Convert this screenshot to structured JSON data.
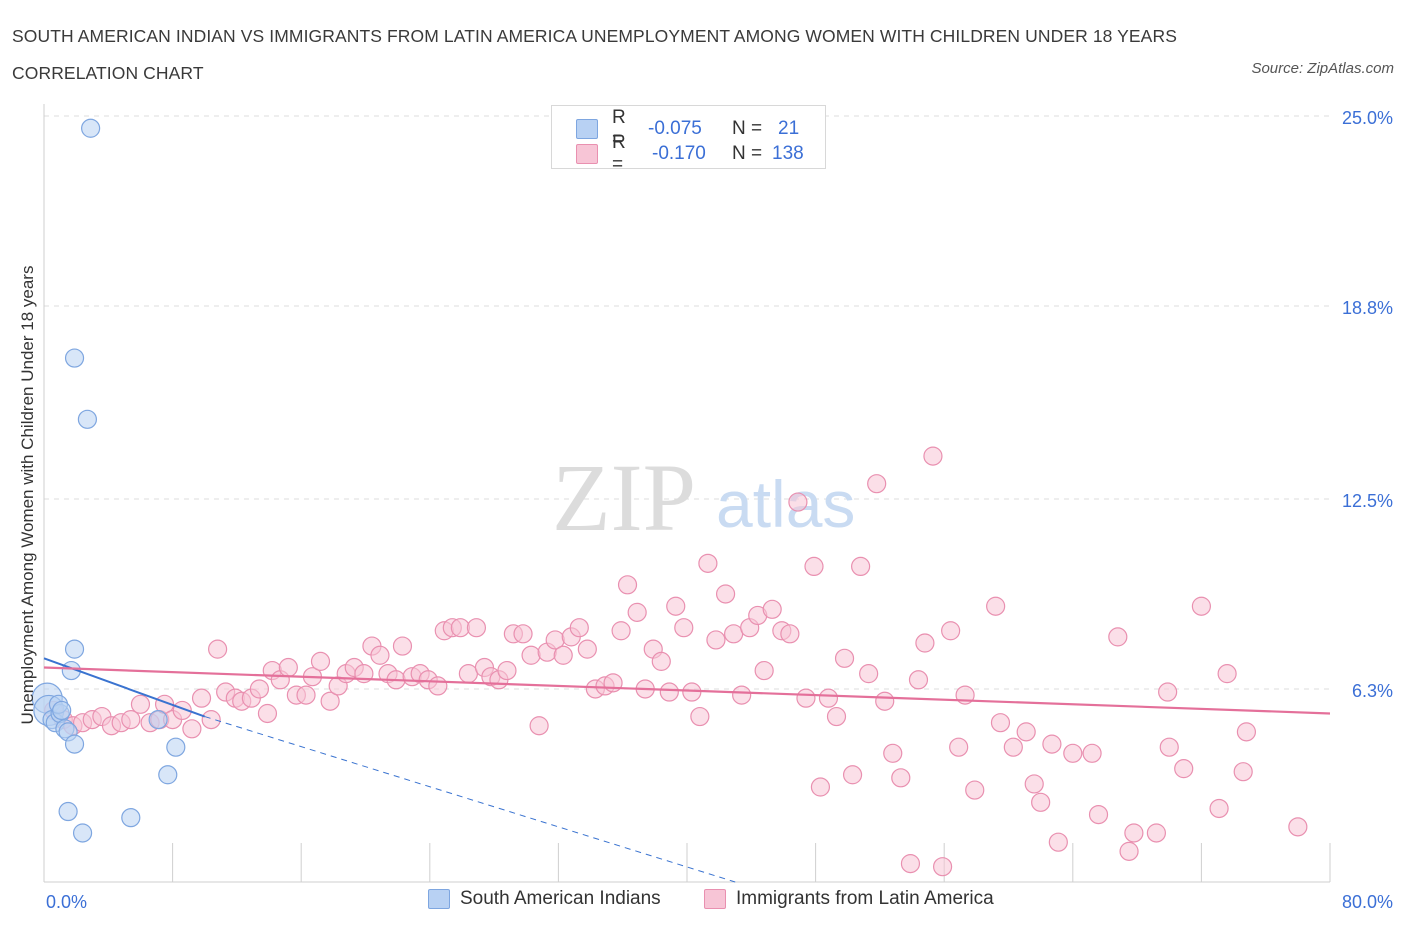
{
  "title": "SOUTH AMERICAN INDIAN VS IMMIGRANTS FROM LATIN AMERICA UNEMPLOYMENT AMONG WOMEN WITH CHILDREN UNDER 18 YEARS CORRELATION CHART",
  "source": "Source: ZipAtlas.com",
  "watermark": {
    "zip": "ZIP",
    "atlas": "atlas"
  },
  "legend": {
    "rows": [
      {
        "r_label": "R =",
        "r_value": "-0.075",
        "n_label": "N =",
        "n_value": "21",
        "fill": "#b8d1f3",
        "stroke": "#7ea6e0"
      },
      {
        "r_label": "R =",
        "r_value": "-0.170",
        "n_label": "N =",
        "n_value": "138",
        "fill": "#f7c5d6",
        "stroke": "#e990b0"
      }
    ]
  },
  "chart_data": {
    "type": "scatter",
    "ylabel": "Unemployment Among Women with Children Under 18 years",
    "xlim": [
      0,
      80
    ],
    "ylim": [
      0,
      25
    ],
    "x_tick_labels": [
      {
        "value": 0,
        "label": "0.0%"
      },
      {
        "value": 80,
        "label": "80.0%"
      }
    ],
    "y_tick_labels": [
      {
        "value": 6.3,
        "label": "6.3%"
      },
      {
        "value": 12.5,
        "label": "12.5%"
      },
      {
        "value": 18.8,
        "label": "18.8%"
      },
      {
        "value": 25.0,
        "label": "25.0%"
      }
    ],
    "grid": true,
    "legend_position": "bottom-center",
    "series": [
      {
        "name": "South American Indians",
        "color": "#7ea6e0",
        "fill": "#b8d1f3",
        "trend": {
          "x0": 0,
          "y0": 7.3,
          "x1": 10,
          "y1": 5.4,
          "dashed_to_x": 43
        },
        "points": [
          [
            2.9,
            24.6
          ],
          [
            1.9,
            17.1
          ],
          [
            2.7,
            15.1
          ],
          [
            0.2,
            6.0
          ],
          [
            0.3,
            5.6
          ],
          [
            0.5,
            5.3
          ],
          [
            0.7,
            5.2
          ],
          [
            1.0,
            5.5
          ],
          [
            1.3,
            5.0
          ],
          [
            1.5,
            4.9
          ],
          [
            1.9,
            4.5
          ],
          [
            0.9,
            5.8
          ],
          [
            1.1,
            5.6
          ],
          [
            1.7,
            6.9
          ],
          [
            1.9,
            7.6
          ],
          [
            7.1,
            5.3
          ],
          [
            8.2,
            4.4
          ],
          [
            7.7,
            3.5
          ],
          [
            1.5,
            2.3
          ],
          [
            2.4,
            1.6
          ],
          [
            5.4,
            2.1
          ]
        ]
      },
      {
        "name": "Immigrants from Latin America",
        "color": "#e990b0",
        "fill": "#f7c5d6",
        "trend": {
          "x0": 0,
          "y0": 7.0,
          "x1": 80,
          "y1": 5.5
        },
        "points": [
          [
            0.6,
            5.6
          ],
          [
            1.2,
            5.3
          ],
          [
            1.8,
            5.1
          ],
          [
            2.4,
            5.2
          ],
          [
            3.0,
            5.3
          ],
          [
            3.6,
            5.4
          ],
          [
            4.2,
            5.1
          ],
          [
            4.8,
            5.2
          ],
          [
            5.4,
            5.3
          ],
          [
            6.0,
            5.8
          ],
          [
            6.6,
            5.2
          ],
          [
            7.2,
            5.3
          ],
          [
            7.5,
            5.8
          ],
          [
            8.0,
            5.3
          ],
          [
            8.6,
            5.6
          ],
          [
            9.2,
            5.0
          ],
          [
            9.8,
            6.0
          ],
          [
            10.4,
            5.3
          ],
          [
            10.8,
            7.6
          ],
          [
            11.3,
            6.2
          ],
          [
            11.9,
            6.0
          ],
          [
            12.3,
            5.9
          ],
          [
            12.9,
            6.0
          ],
          [
            13.4,
            6.3
          ],
          [
            13.9,
            5.5
          ],
          [
            14.2,
            6.9
          ],
          [
            14.7,
            6.6
          ],
          [
            15.2,
            7.0
          ],
          [
            15.7,
            6.1
          ],
          [
            16.3,
            6.1
          ],
          [
            16.7,
            6.7
          ],
          [
            17.2,
            7.2
          ],
          [
            17.8,
            5.9
          ],
          [
            18.3,
            6.4
          ],
          [
            18.8,
            6.8
          ],
          [
            19.3,
            7.0
          ],
          [
            19.9,
            6.8
          ],
          [
            20.4,
            7.7
          ],
          [
            20.9,
            7.4
          ],
          [
            21.4,
            6.8
          ],
          [
            21.9,
            6.6
          ],
          [
            22.3,
            7.7
          ],
          [
            22.9,
            6.7
          ],
          [
            23.4,
            6.8
          ],
          [
            23.9,
            6.6
          ],
          [
            24.5,
            6.4
          ],
          [
            24.9,
            8.2
          ],
          [
            25.4,
            8.3
          ],
          [
            25.9,
            8.3
          ],
          [
            26.4,
            6.8
          ],
          [
            26.9,
            8.3
          ],
          [
            27.4,
            7.0
          ],
          [
            27.8,
            6.7
          ],
          [
            28.3,
            6.6
          ],
          [
            28.8,
            6.9
          ],
          [
            29.2,
            8.1
          ],
          [
            29.8,
            8.1
          ],
          [
            30.3,
            7.4
          ],
          [
            30.8,
            5.1
          ],
          [
            31.3,
            7.5
          ],
          [
            31.8,
            7.9
          ],
          [
            32.3,
            7.4
          ],
          [
            32.8,
            8.0
          ],
          [
            33.3,
            8.3
          ],
          [
            33.8,
            7.6
          ],
          [
            34.3,
            6.3
          ],
          [
            34.9,
            6.4
          ],
          [
            35.4,
            6.5
          ],
          [
            35.9,
            8.2
          ],
          [
            36.3,
            9.7
          ],
          [
            36.9,
            8.8
          ],
          [
            37.4,
            6.3
          ],
          [
            37.9,
            7.6
          ],
          [
            38.4,
            7.2
          ],
          [
            38.9,
            6.2
          ],
          [
            39.3,
            9.0
          ],
          [
            39.8,
            8.3
          ],
          [
            40.3,
            6.2
          ],
          [
            40.8,
            5.4
          ],
          [
            41.3,
            10.4
          ],
          [
            41.8,
            7.9
          ],
          [
            42.4,
            9.4
          ],
          [
            42.9,
            8.1
          ],
          [
            43.4,
            6.1
          ],
          [
            43.9,
            8.3
          ],
          [
            44.4,
            8.7
          ],
          [
            44.8,
            6.9
          ],
          [
            45.3,
            8.9
          ],
          [
            45.9,
            8.2
          ],
          [
            46.4,
            8.1
          ],
          [
            46.9,
            12.4
          ],
          [
            47.4,
            6.0
          ],
          [
            47.9,
            10.3
          ],
          [
            48.3,
            3.1
          ],
          [
            48.8,
            6.0
          ],
          [
            49.3,
            5.4
          ],
          [
            49.8,
            7.3
          ],
          [
            50.3,
            3.5
          ],
          [
            50.8,
            10.3
          ],
          [
            51.3,
            6.8
          ],
          [
            51.8,
            13.0
          ],
          [
            52.3,
            5.9
          ],
          [
            52.8,
            4.2
          ],
          [
            53.3,
            3.4
          ],
          [
            53.9,
            0.6
          ],
          [
            54.4,
            6.6
          ],
          [
            54.8,
            7.8
          ],
          [
            55.3,
            13.9
          ],
          [
            55.9,
            0.5
          ],
          [
            56.4,
            8.2
          ],
          [
            56.9,
            4.4
          ],
          [
            57.3,
            6.1
          ],
          [
            57.9,
            3.0
          ],
          [
            59.2,
            9.0
          ],
          [
            59.5,
            5.2
          ],
          [
            60.3,
            4.4
          ],
          [
            61.1,
            4.9
          ],
          [
            61.6,
            3.2
          ],
          [
            62.0,
            2.6
          ],
          [
            62.7,
            4.5
          ],
          [
            63.1,
            1.3
          ],
          [
            64.0,
            4.2
          ],
          [
            65.2,
            4.2
          ],
          [
            65.6,
            2.2
          ],
          [
            66.8,
            8.0
          ],
          [
            67.5,
            1.0
          ],
          [
            67.8,
            1.6
          ],
          [
            69.2,
            1.6
          ],
          [
            69.9,
            6.2
          ],
          [
            70.0,
            4.4
          ],
          [
            70.9,
            3.7
          ],
          [
            72.0,
            9.0
          ],
          [
            73.1,
            2.4
          ],
          [
            73.6,
            6.8
          ],
          [
            74.6,
            3.6
          ],
          [
            74.8,
            4.9
          ],
          [
            78.0,
            1.8
          ]
        ]
      }
    ]
  }
}
